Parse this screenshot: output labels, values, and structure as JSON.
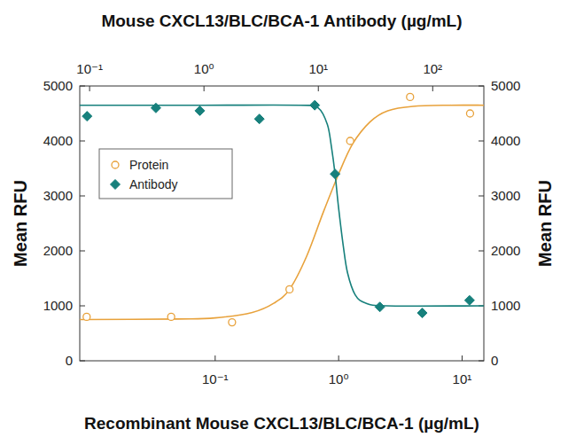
{
  "chart_data": {
    "type": "scatter",
    "x2_label": "Mouse CXCL13/BLC/BCA-1 Antibody (µg/mL)",
    "x_label": "Recombinant Mouse CXCL13/BLC/BCA-1 (µg/mL)",
    "y_label": "Mean RFU",
    "y2_label": "Mean RFU",
    "log": "x",
    "legend": "upper left",
    "xlim": [
      0.008,
      15
    ],
    "xticks": [
      {
        "value": 0.1,
        "label": "10⁻¹"
      },
      {
        "value": 1,
        "label": "10⁰"
      },
      {
        "value": 10,
        "label": "10¹"
      }
    ],
    "x2lim": [
      0.082,
      280
    ],
    "x2ticks": [
      {
        "value": 0.1,
        "label": "10⁻¹"
      },
      {
        "value": 1,
        "label": "10⁰"
      },
      {
        "value": 10,
        "label": "10¹"
      },
      {
        "value": 100,
        "label": "10²"
      }
    ],
    "ylim": [
      0,
      5000
    ],
    "yticks": [
      0,
      1000,
      2000,
      3000,
      4000,
      5000
    ],
    "y2lim": [
      0,
      5000
    ],
    "y2ticks": [
      0,
      1000,
      2000,
      3000,
      4000,
      5000
    ],
    "series": [
      {
        "name": "Protein",
        "color": "#e8a23c",
        "marker": "circle",
        "x": [
          0.0091,
          0.044,
          0.137,
          0.4,
          1.24,
          3.79,
          11.6
        ],
        "values": [
          800,
          800,
          700,
          1300,
          4000,
          4800,
          4500
        ],
        "fit": {
          "x": [
            0.008,
            0.05,
            0.1,
            0.2,
            0.3,
            0.4,
            0.55,
            0.75,
            1.0,
            1.3,
            1.8,
            2.5,
            4,
            8,
            15
          ],
          "values": [
            750,
            760,
            780,
            880,
            1050,
            1300,
            1900,
            2700,
            3400,
            3950,
            4350,
            4550,
            4630,
            4650,
            4650
          ]
        }
      },
      {
        "name": "Antibody",
        "color": "#17807c",
        "marker": "diamond",
        "axis": "x2",
        "x": [
          0.095,
          0.38,
          0.92,
          3.05,
          9.3,
          14,
          34.5,
          81,
          210
        ],
        "values": [
          4450,
          4600,
          4550,
          4400,
          4650,
          3400,
          980,
          870,
          1100
        ],
        "fit": {
          "x": [
            0.082,
            1,
            7,
            10,
            12,
            13,
            14,
            15,
            16.5,
            18,
            21,
            26,
            40,
            280
          ],
          "values": [
            4650,
            4650,
            4650,
            4600,
            4300,
            3900,
            3400,
            2800,
            2100,
            1600,
            1200,
            1050,
            1000,
            1000
          ]
        }
      }
    ]
  }
}
